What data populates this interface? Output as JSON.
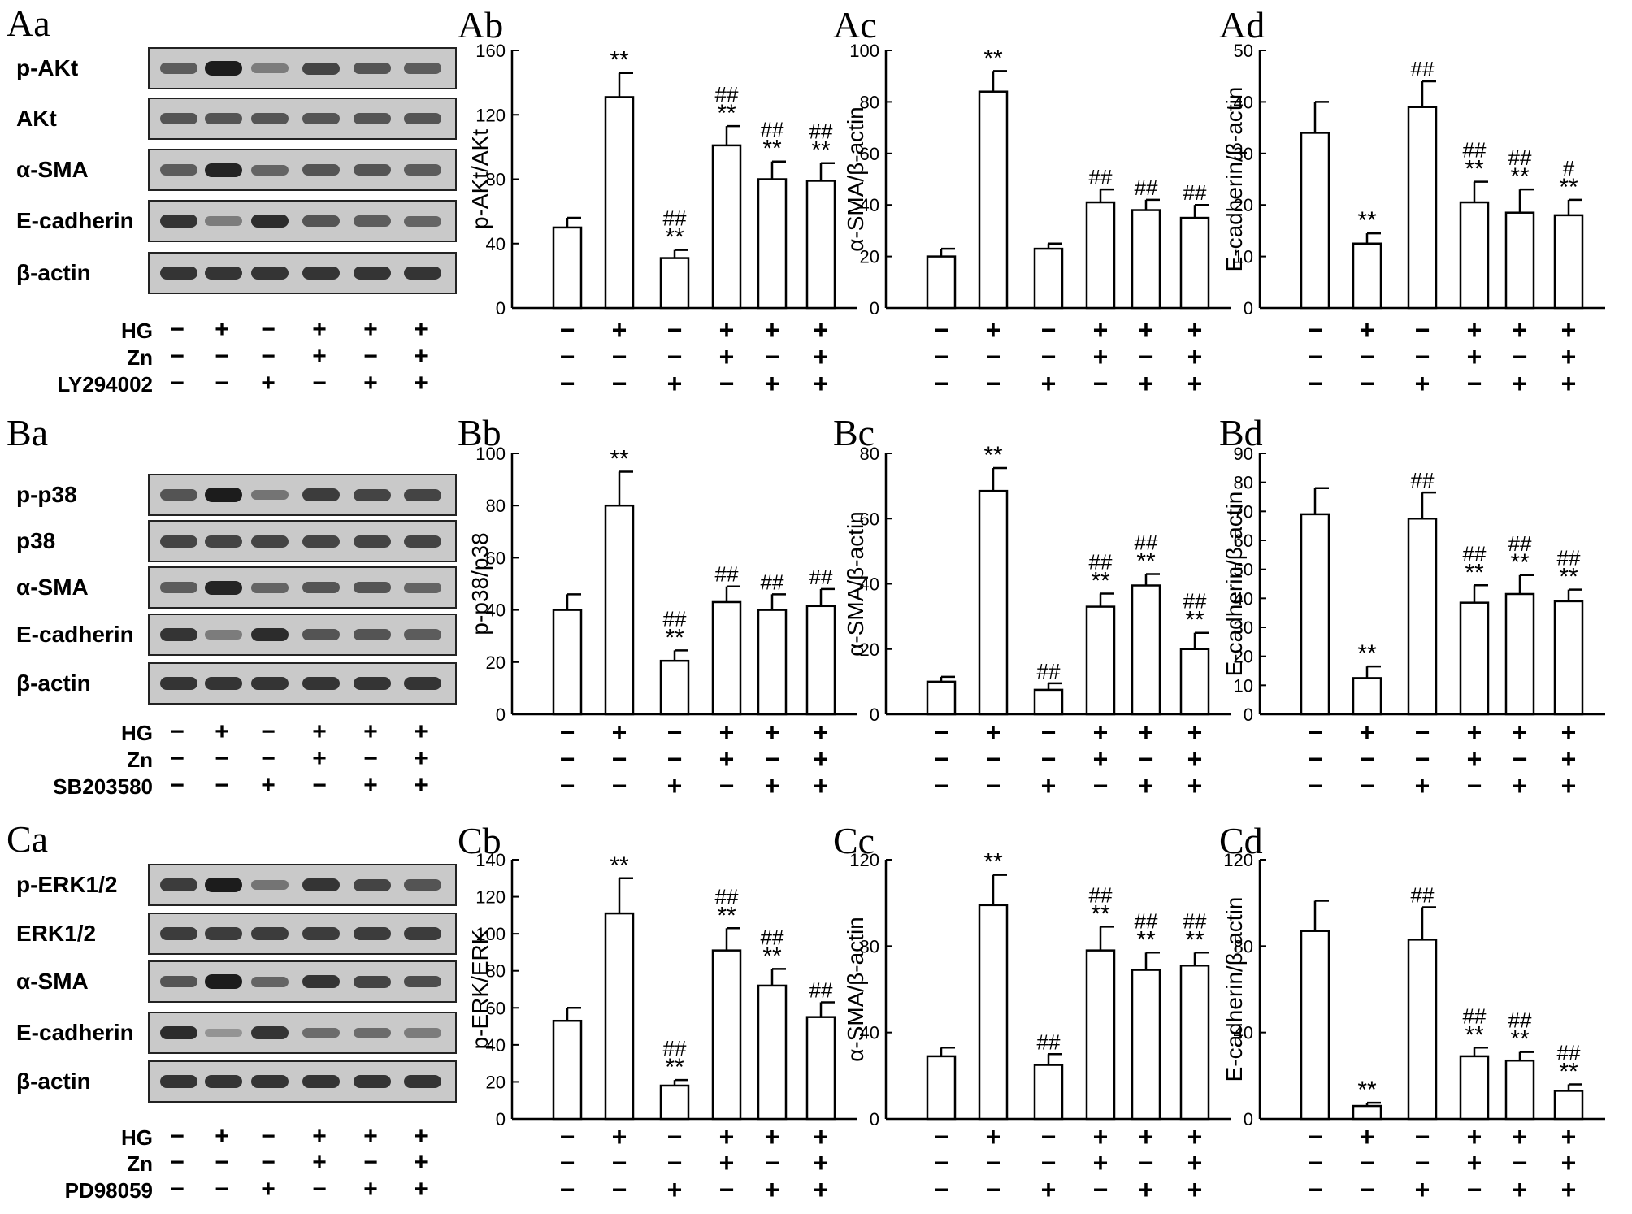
{
  "rows": [
    {
      "blot": {
        "label": "Aa",
        "bands": [
          "p-AKt",
          "AKt",
          "α-SMA",
          "E-cadherin",
          "β-actin"
        ],
        "treatments": [
          {
            "name": "HG",
            "signs": [
              "−",
              "+",
              "−",
              "+",
              "+",
              "+"
            ]
          },
          {
            "name": "Zn",
            "signs": [
              "−",
              "−",
              "−",
              "+",
              "−",
              "+"
            ]
          },
          {
            "name": "LY294002",
            "signs": [
              "−",
              "−",
              "+",
              "−",
              "+",
              "+"
            ]
          }
        ]
      }
    },
    {
      "blot": {
        "label": "Ba",
        "bands": [
          "p-p38",
          "p38",
          "α-SMA",
          "E-cadherin",
          "β-actin"
        ],
        "treatments": [
          {
            "name": "HG",
            "signs": [
              "−",
              "+",
              "−",
              "+",
              "+",
              "+"
            ]
          },
          {
            "name": "Zn",
            "signs": [
              "−",
              "−",
              "−",
              "+",
              "−",
              "+"
            ]
          },
          {
            "name": "SB203580",
            "signs": [
              "−",
              "−",
              "+",
              "−",
              "+",
              "+"
            ]
          }
        ]
      }
    },
    {
      "blot": {
        "label": "Ca",
        "bands": [
          "p-ERK1/2",
          "ERK1/2",
          "α-SMA",
          "E-cadherin",
          "β-actin"
        ],
        "treatments": [
          {
            "name": "HG",
            "signs": [
              "−",
              "+",
              "−",
              "+",
              "+",
              "+"
            ]
          },
          {
            "name": "Zn",
            "signs": [
              "−",
              "−",
              "−",
              "+",
              "−",
              "+"
            ]
          },
          {
            "name": "PD98059",
            "signs": [
              "−",
              "−",
              "+",
              "−",
              "+",
              "+"
            ]
          }
        ]
      }
    }
  ],
  "chart_data": [
    {
      "label": "Ab",
      "type": "bar",
      "ylabel": "p-AKt/AKt",
      "ylim": [
        0,
        160
      ],
      "yticks": [
        0,
        40,
        80,
        120,
        160
      ],
      "values": [
        50,
        131,
        31,
        101,
        80,
        79
      ],
      "errors": [
        6,
        15,
        5,
        12,
        11,
        11
      ],
      "annotations": [
        "",
        "**",
        "##\n**",
        "##\n**",
        "##\n**",
        "##\n**"
      ],
      "condition_rows": [
        [
          "−",
          "+",
          "−",
          "+",
          "+",
          "+"
        ],
        [
          "−",
          "−",
          "−",
          "+",
          "−",
          "+"
        ],
        [
          "−",
          "−",
          "+",
          "−",
          "+",
          "+"
        ]
      ]
    },
    {
      "label": "Ac",
      "type": "bar",
      "ylabel": "α-SMA/β-actin",
      "ylim": [
        0,
        100
      ],
      "yticks": [
        0,
        20,
        40,
        60,
        80,
        100
      ],
      "values": [
        20,
        84,
        23,
        41,
        38,
        35
      ],
      "errors": [
        3,
        8,
        2,
        5,
        4,
        5
      ],
      "annotations": [
        "",
        "**",
        "",
        "##",
        "##",
        "##"
      ],
      "condition_rows": [
        [
          "−",
          "+",
          "−",
          "+",
          "+",
          "+"
        ],
        [
          "−",
          "−",
          "−",
          "+",
          "−",
          "+"
        ],
        [
          "−",
          "−",
          "+",
          "−",
          "+",
          "+"
        ]
      ]
    },
    {
      "label": "Ad",
      "type": "bar",
      "ylabel": "E-cadherin/β-actin",
      "ylim": [
        0,
        50
      ],
      "yticks": [
        0,
        10,
        20,
        30,
        40,
        50
      ],
      "values": [
        34,
        12.5,
        39,
        20.5,
        18.5,
        18
      ],
      "errors": [
        6,
        2,
        5,
        4,
        4.5,
        3
      ],
      "annotations": [
        "",
        "**",
        "##",
        "##\n**",
        "##\n**",
        "#\n**"
      ],
      "condition_rows": [
        [
          "−",
          "+",
          "−",
          "+",
          "+",
          "+"
        ],
        [
          "−",
          "−",
          "−",
          "+",
          "−",
          "+"
        ],
        [
          "−",
          "−",
          "+",
          "−",
          "+",
          "+"
        ]
      ]
    },
    {
      "label": "Bb",
      "type": "bar",
      "ylabel": "p-p38/p38",
      "ylim": [
        0,
        100
      ],
      "yticks": [
        0,
        20,
        40,
        60,
        80,
        100
      ],
      "values": [
        40,
        80,
        20.5,
        43,
        40,
        41.5
      ],
      "errors": [
        6,
        13,
        4,
        6,
        6,
        6.5
      ],
      "annotations": [
        "",
        "**",
        "##\n**",
        "##",
        "##",
        "##"
      ],
      "condition_rows": [
        [
          "−",
          "+",
          "−",
          "+",
          "+",
          "+"
        ],
        [
          "−",
          "−",
          "−",
          "+",
          "−",
          "+"
        ],
        [
          "−",
          "−",
          "+",
          "−",
          "+",
          "+"
        ]
      ]
    },
    {
      "label": "Bc",
      "type": "bar",
      "ylabel": "α-SMA/β-actin",
      "ylim": [
        0,
        80
      ],
      "yticks": [
        0,
        20,
        40,
        60,
        80
      ],
      "values": [
        10,
        68.5,
        7.5,
        33,
        39.5,
        20
      ],
      "errors": [
        1.5,
        7,
        2,
        4,
        3.5,
        5
      ],
      "annotations": [
        "",
        "**",
        "##",
        "##\n**",
        "##\n**",
        "##\n**"
      ],
      "condition_rows": [
        [
          "−",
          "+",
          "−",
          "+",
          "+",
          "+"
        ],
        [
          "−",
          "−",
          "−",
          "+",
          "−",
          "+"
        ],
        [
          "−",
          "−",
          "+",
          "−",
          "+",
          "+"
        ]
      ]
    },
    {
      "label": "Bd",
      "type": "bar",
      "ylabel": "E-cadherin/β-actin",
      "ylim": [
        0,
        90
      ],
      "yticks": [
        0,
        10,
        20,
        30,
        40,
        50,
        60,
        70,
        80,
        90
      ],
      "values": [
        69,
        12.5,
        67.5,
        38.5,
        41.5,
        39
      ],
      "errors": [
        9,
        4,
        9,
        6,
        6.5,
        4
      ],
      "annotations": [
        "",
        "**",
        "##",
        "##\n**",
        "##\n**",
        "##\n**"
      ],
      "condition_rows": [
        [
          "−",
          "+",
          "−",
          "+",
          "+",
          "+"
        ],
        [
          "−",
          "−",
          "−",
          "+",
          "−",
          "+"
        ],
        [
          "−",
          "−",
          "+",
          "−",
          "+",
          "+"
        ]
      ]
    },
    {
      "label": "Cb",
      "type": "bar",
      "ylabel": "p-ERK/ERK",
      "ylim": [
        0,
        140
      ],
      "yticks": [
        0,
        20,
        40,
        60,
        80,
        100,
        120,
        140
      ],
      "values": [
        53,
        111,
        18,
        91,
        72,
        55
      ],
      "errors": [
        7,
        19,
        3,
        12,
        9,
        8
      ],
      "annotations": [
        "",
        "**",
        "##\n**",
        "##\n**",
        "##\n**",
        "##"
      ],
      "condition_rows": [
        [
          "−",
          "+",
          "−",
          "+",
          "+",
          "+"
        ],
        [
          "−",
          "−",
          "−",
          "+",
          "−",
          "+"
        ],
        [
          "−",
          "−",
          "+",
          "−",
          "+",
          "+"
        ]
      ]
    },
    {
      "label": "Cc",
      "type": "bar",
      "ylabel": "α-SMA/β-actin",
      "ylim": [
        0,
        120
      ],
      "yticks": [
        0,
        40,
        80,
        120
      ],
      "values": [
        29,
        99,
        25,
        78,
        69,
        71
      ],
      "errors": [
        4,
        14,
        5,
        11,
        8,
        6
      ],
      "annotations": [
        "",
        "**",
        "##",
        "##\n**",
        "##\n**",
        "##\n**"
      ],
      "condition_rows": [
        [
          "−",
          "+",
          "−",
          "+",
          "+",
          "+"
        ],
        [
          "−",
          "−",
          "−",
          "+",
          "−",
          "+"
        ],
        [
          "−",
          "−",
          "+",
          "−",
          "+",
          "+"
        ]
      ]
    },
    {
      "label": "Cd",
      "type": "bar",
      "ylabel": "E-cadherin/β-actin",
      "ylim": [
        0,
        120
      ],
      "yticks": [
        0,
        40,
        80,
        120
      ],
      "values": [
        87,
        6,
        83,
        29,
        27,
        13
      ],
      "errors": [
        14,
        1.5,
        15,
        4,
        4,
        3
      ],
      "annotations": [
        "",
        "**",
        "##",
        "##\n**",
        "##\n**",
        "##\n**"
      ],
      "condition_rows": [
        [
          "−",
          "+",
          "−",
          "+",
          "+",
          "+"
        ],
        [
          "−",
          "−",
          "−",
          "+",
          "−",
          "+"
        ],
        [
          "−",
          "−",
          "+",
          "−",
          "+",
          "+"
        ]
      ]
    }
  ]
}
